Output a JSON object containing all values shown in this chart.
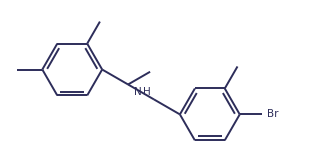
{
  "bg_color": "#ffffff",
  "line_color": "#2d2d5a",
  "lw": 1.4,
  "font_nh": 7.5,
  "font_br": 7.5,
  "xlim": [
    0.0,
    10.0
  ],
  "ylim": [
    0.0,
    5.5
  ]
}
